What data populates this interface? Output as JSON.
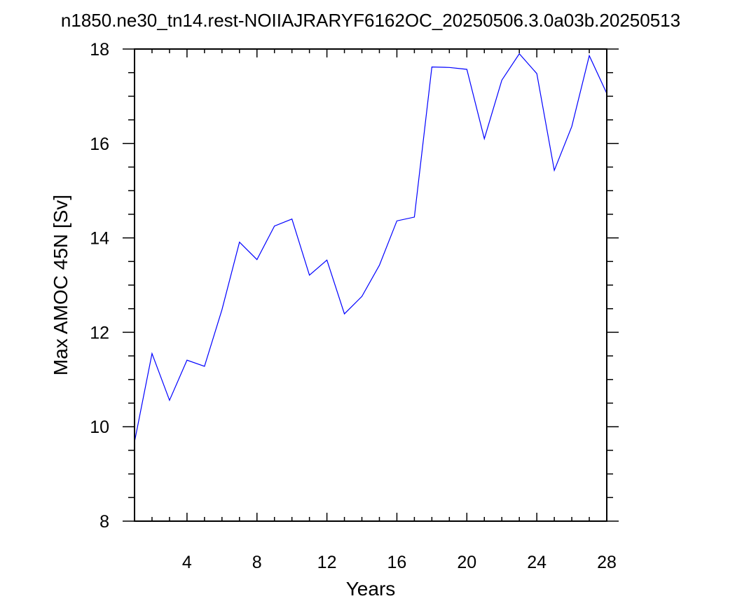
{
  "chart_data": {
    "type": "line",
    "title": "n1850.ne30_tn14.rest-NOIIAJRARYF6162OC_20250506.3.0a03b.20250513",
    "xlabel": "Years",
    "ylabel": "Max AMOC 45N [Sv]",
    "xlim": [
      1,
      28
    ],
    "ylim": [
      8,
      18
    ],
    "x_ticks": [
      4,
      8,
      12,
      16,
      20,
      24,
      28
    ],
    "y_ticks": [
      8,
      10,
      12,
      14,
      16,
      18
    ],
    "grid": false,
    "line_color": "#0000ff",
    "series": [
      {
        "x": [
          1,
          2,
          3,
          4,
          5,
          6,
          7,
          8,
          9,
          10,
          11,
          12,
          13,
          14,
          15,
          16,
          17,
          18,
          19,
          20,
          21,
          22,
          23,
          24,
          25,
          26,
          27,
          28
        ],
        "values": [
          9.68,
          11.55,
          10.56,
          11.41,
          11.28,
          12.48,
          13.91,
          13.54,
          14.25,
          14.4,
          13.21,
          13.53,
          12.39,
          12.76,
          13.42,
          14.36,
          14.44,
          17.62,
          17.61,
          17.57,
          16.1,
          17.34,
          17.9,
          17.48,
          15.43,
          16.36,
          17.86,
          17.06
        ]
      }
    ]
  }
}
